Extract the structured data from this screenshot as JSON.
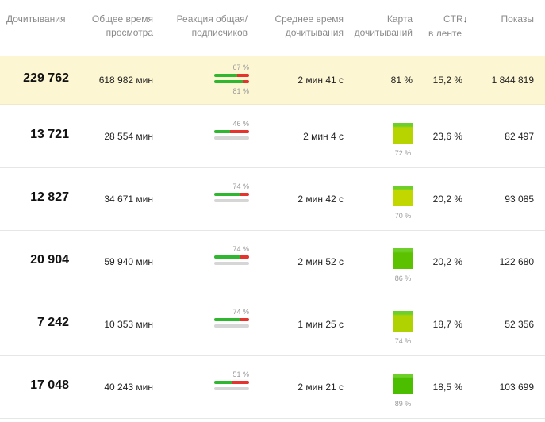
{
  "headers": {
    "completions": "Дочитывания",
    "total_time": [
      "Общее время",
      "просмотра"
    ],
    "reaction": [
      "Реакция общая/",
      "подписчиков"
    ],
    "avg_time": [
      "Среднее время",
      "дочитывания"
    ],
    "heatmap": [
      "Карта",
      "дочитываний"
    ],
    "ctr": [
      "CTR",
      "в ленте"
    ],
    "ctr_sort_icon": "arrow-down-icon",
    "views": "Показы"
  },
  "summary": {
    "completions": "229 762",
    "total_time": "618 982 мин",
    "reaction_total": "67 %",
    "reaction_subs": "81 %",
    "reaction_total_value": 0.67,
    "reaction_subs_value": 0.81,
    "avg_time": "2 мин 41 с",
    "heatmap_pct": "81 %",
    "ctr": "15,2 %",
    "views": "1 844 819"
  },
  "rows": [
    {
      "completions": "13 721",
      "total_time": "28 554 мин",
      "reaction": "46 %",
      "reaction_value": 0.46,
      "avg_time": "2 мин 4 с",
      "heatmap_pct": "72 %",
      "heat_color": "#b8d400",
      "ctr": "23,6 %",
      "views": "82 497"
    },
    {
      "completions": "12 827",
      "total_time": "34 671 мин",
      "reaction": "74 %",
      "reaction_value": 0.74,
      "avg_time": "2 мин 42 с",
      "heatmap_pct": "70 %",
      "heat_color": "#c2d600",
      "ctr": "20,2 %",
      "views": "93 085"
    },
    {
      "completions": "20 904",
      "total_time": "59 940 мин",
      "reaction": "74 %",
      "reaction_value": 0.74,
      "avg_time": "2 мин 52 с",
      "heatmap_pct": "86 %",
      "heat_color": "#5cc200",
      "ctr": "20,2 %",
      "views": "122 680"
    },
    {
      "completions": "7 242",
      "total_time": "10 353 мин",
      "reaction": "74 %",
      "reaction_value": 0.74,
      "avg_time": "1 мин 25 с",
      "heatmap_pct": "74 %",
      "heat_color": "#b0d200",
      "ctr": "18,7 %",
      "views": "52 356"
    },
    {
      "completions": "17 048",
      "total_time": "40 243 мин",
      "reaction": "51 %",
      "reaction_value": 0.51,
      "avg_time": "2 мин 21 с",
      "heatmap_pct": "89 %",
      "heat_color": "#4cbe00",
      "ctr": "18,5 %",
      "views": "103 699"
    }
  ],
  "colors": {
    "highlight_bg": "#fcf6d2",
    "bar_green": "#2fb82f",
    "bar_red": "#e5332e",
    "bar_grey": "#d6d6d6"
  }
}
